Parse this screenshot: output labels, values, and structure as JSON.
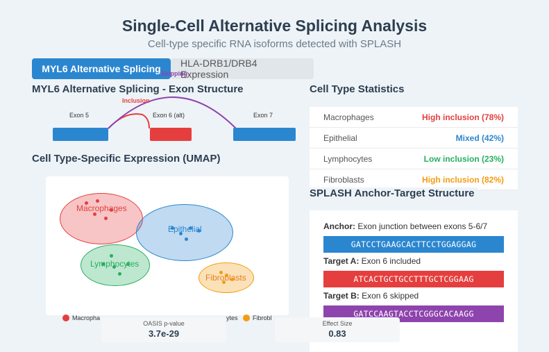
{
  "header": {
    "title": "Single-Cell Alternative Splicing Analysis",
    "subtitle": "Cell-type specific RNA isoforms detected with SPLASH"
  },
  "tabs": [
    {
      "label": "MYL6 Alternative Splicing",
      "active": true
    },
    {
      "label": "HLA-DRB1/DRB4 Expression",
      "active": false
    }
  ],
  "exon_structure": {
    "heading": "MYL6 Alternative Splicing - Exon Structure",
    "exons": [
      "Exon 5",
      "Exon 6 (alt)",
      "Exon 7"
    ],
    "inclusion_label": "Inclusion",
    "skipping_label": "Skipping"
  },
  "umap": {
    "heading": "Cell Type-Specific Expression (UMAP)",
    "clusters": [
      {
        "name": "Macrophages",
        "color": "#e53e3e"
      },
      {
        "name": "Epithelial",
        "color": "#2b86d0"
      },
      {
        "name": "Lymphocytes",
        "color": "#27ae60"
      },
      {
        "name": "Fibroblasts",
        "color": "#f39c12"
      }
    ],
    "legend": [
      "Macropha",
      "ytes",
      "Fibrobl"
    ]
  },
  "stats": {
    "heading": "Cell Type Statistics",
    "rows": [
      {
        "name": "Macrophages",
        "value": "High inclusion (78%)",
        "color": "#e53e3e"
      },
      {
        "name": "Epithelial",
        "value": "Mixed (42%)",
        "color": "#2b86d0"
      },
      {
        "name": "Lymphocytes",
        "value": "Low inclusion (23%)",
        "color": "#27ae60"
      },
      {
        "name": "Fibroblasts",
        "value": "High inclusion (82%)",
        "color": "#f39c12"
      }
    ]
  },
  "splash": {
    "heading": "SPLASH Anchor-Target Structure",
    "anchor_label": "Anchor:",
    "anchor_text": " Exon junction between exons 5-6/7",
    "anchor_seq": "GATCCTGAAGCACTTCCTGGAGGAG",
    "target_a_label": "Target A:",
    "target_a_text": " Exon 6 included",
    "target_a_seq": "ATCACTGCTGCCTTTGCTCGGAAG",
    "target_b_label": "Target B:",
    "target_b_text": " Exon 6 skipped",
    "target_b_seq": "GATCCAAGTACCTCGGGCACAAGG",
    "colors": {
      "anchor": "#2b86d0",
      "target_a": "#e53e3e",
      "target_b": "#8e44ad"
    }
  },
  "metrics": [
    {
      "label": "OASIS p-value",
      "value": "3.7e-29"
    },
    {
      "label": "Effect Size",
      "value": "0.83"
    }
  ]
}
